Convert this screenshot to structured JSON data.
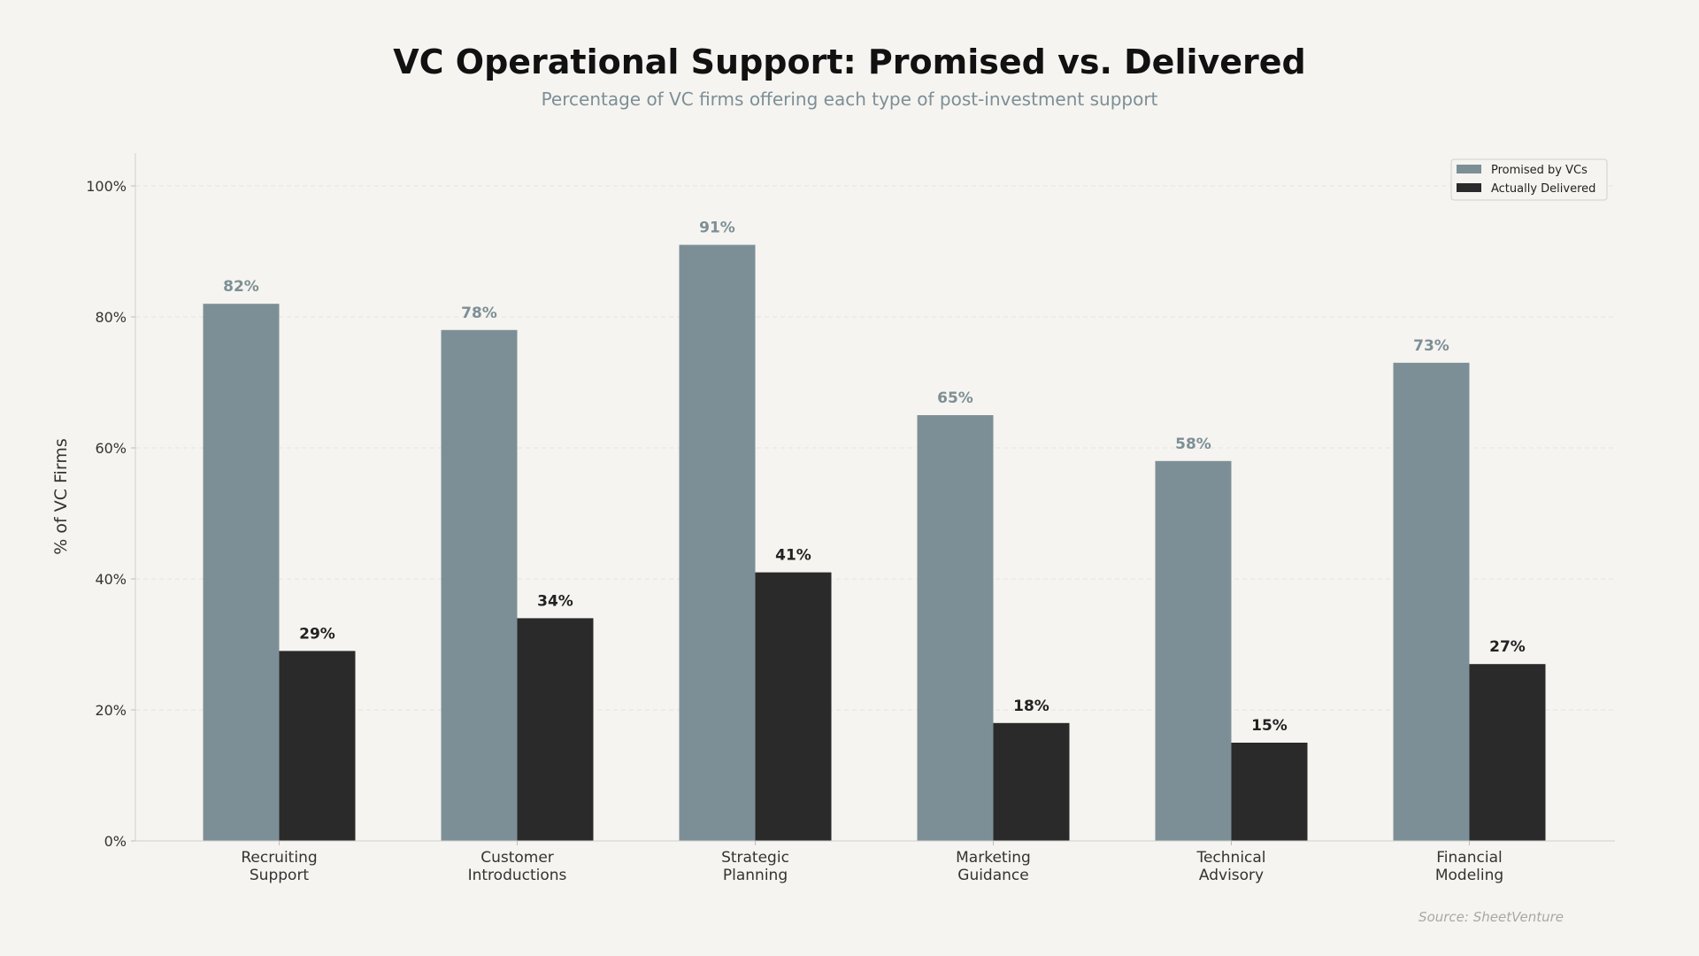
{
  "chart_data": {
    "type": "bar",
    "title": "VC Operational Support: Promised vs. Delivered",
    "subtitle": "Percentage of VC firms offering each type of post-investment support",
    "xlabel": "",
    "ylabel": "% of VC Firms",
    "ylim": [
      0,
      105
    ],
    "yticks": [
      0,
      20,
      40,
      60,
      80,
      100
    ],
    "ytick_suffix": "%",
    "grid": true,
    "legend_position": "top-right",
    "categories": [
      [
        "Recruiting",
        "Support"
      ],
      [
        "Customer",
        "Introductions"
      ],
      [
        "Strategic",
        "Planning"
      ],
      [
        "Marketing",
        "Guidance"
      ],
      [
        "Technical",
        "Advisory"
      ],
      [
        "Financial",
        "Modeling"
      ]
    ],
    "series": [
      {
        "name": "Promised by VCs",
        "color": "#7d8f96",
        "values": [
          82,
          78,
          91,
          65,
          58,
          73
        ]
      },
      {
        "name": "Actually Delivered",
        "color": "#2a2a2a",
        "values": [
          29,
          34,
          41,
          18,
          15,
          27
        ]
      }
    ],
    "source": "Source: SheetVenture"
  }
}
